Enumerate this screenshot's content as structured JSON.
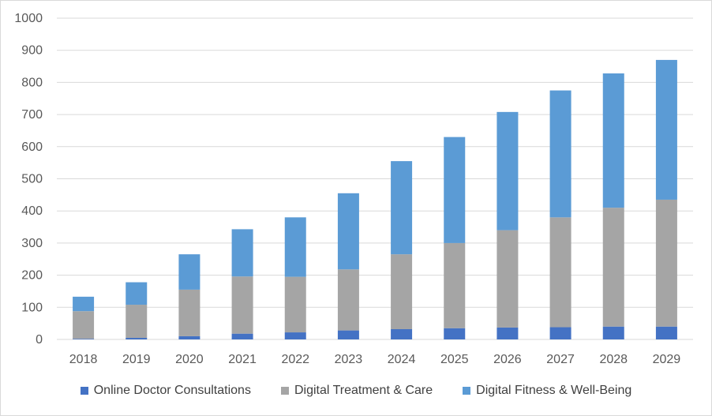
{
  "chart_data": {
    "type": "bar",
    "stacked": true,
    "categories": [
      "2018",
      "2019",
      "2020",
      "2021",
      "2022",
      "2023",
      "2024",
      "2025",
      "2026",
      "2027",
      "2028",
      "2029"
    ],
    "series": [
      {
        "name": "Online Doctor Consultations",
        "color": "#4472c4",
        "values": [
          2,
          5,
          10,
          18,
          22,
          28,
          32,
          35,
          37,
          38,
          40,
          40
        ]
      },
      {
        "name": "Digital Treatment & Care",
        "color": "#a5a5a5",
        "values": [
          86,
          103,
          145,
          178,
          173,
          190,
          233,
          265,
          303,
          342,
          370,
          395
        ]
      },
      {
        "name": "Digital Fitness & Well-Being",
        "color": "#5b9bd5",
        "values": [
          45,
          70,
          110,
          147,
          185,
          237,
          290,
          330,
          368,
          395,
          418,
          435
        ]
      }
    ],
    "y_ticks": [
      "0",
      "100",
      "200",
      "300",
      "400",
      "500",
      "600",
      "700",
      "800",
      "900",
      "1000"
    ],
    "ylim": [
      0,
      1000
    ],
    "grid": true,
    "legend_position": "bottom"
  }
}
